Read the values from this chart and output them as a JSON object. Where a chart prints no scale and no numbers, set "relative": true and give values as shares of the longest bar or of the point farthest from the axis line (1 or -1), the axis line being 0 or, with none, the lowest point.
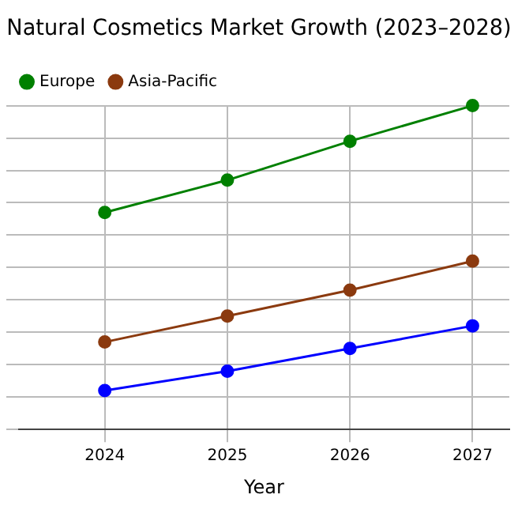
{
  "chart_data": {
    "type": "line",
    "title": "Natural Cosmetics Market Growth (2023–2028)",
    "xlabel": "Year",
    "x": [
      2024,
      2025,
      2026,
      2027
    ],
    "relative": true,
    "xlim": [
      2023.3,
      2027.3
    ],
    "xticks": [
      2024,
      2025,
      2026,
      2027
    ],
    "grid": true,
    "legend": "top left",
    "marker": "circle",
    "line_style": "solid",
    "series": [
      {
        "color": "#0000ff",
        "values": [
          0.12,
          0.18,
          0.25,
          0.32
        ]
      },
      {
        "name": "Europe",
        "color": "#008000",
        "values": [
          0.67,
          0.77,
          0.89,
          1
        ]
      },
      {
        "name": "Asia-Pacific",
        "color": "#8b3a0f",
        "values": [
          0.27,
          0.35,
          0.43,
          0.52
        ]
      }
    ]
  }
}
